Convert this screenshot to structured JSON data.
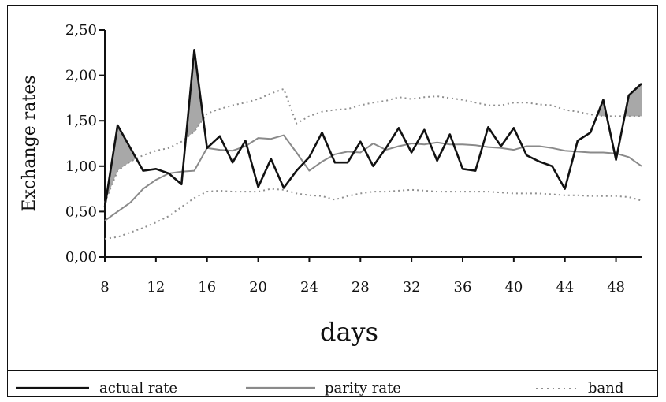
{
  "chart_data": {
    "type": "line",
    "xlabel": "days",
    "ylabel": "Exchange rates",
    "xlim": [
      8,
      50
    ],
    "ylim": [
      0,
      2.5
    ],
    "x_ticks": [
      8,
      12,
      16,
      20,
      24,
      28,
      32,
      36,
      40,
      44,
      48
    ],
    "x_tick_labels": [
      "8",
      "12",
      "16",
      "20",
      "24",
      "28",
      "32",
      "36",
      "40",
      "44",
      "48"
    ],
    "y_ticks": [
      0,
      0.5,
      1.0,
      1.5,
      2.0,
      2.5
    ],
    "y_tick_labels": [
      "0,00",
      "0,50",
      "1,00",
      "1,50",
      "2,00",
      "2,50"
    ],
    "grid": false,
    "legend_position": "bottom",
    "shading": "gray fill between actual rate and upper band where actual rate exceeds band",
    "x": [
      8,
      9,
      10,
      11,
      12,
      13,
      14,
      15,
      16,
      17,
      18,
      19,
      20,
      21,
      22,
      23,
      24,
      25,
      26,
      27,
      28,
      29,
      30,
      31,
      32,
      33,
      34,
      35,
      36,
      37,
      38,
      39,
      40,
      41,
      42,
      43,
      44,
      45,
      46,
      47,
      48,
      49,
      50
    ],
    "series": [
      {
        "name": "actual rate",
        "style": "solid-black",
        "values": [
          0.55,
          1.45,
          1.2,
          0.95,
          0.97,
          0.92,
          0.8,
          2.28,
          1.2,
          1.33,
          1.04,
          1.28,
          0.77,
          1.08,
          0.76,
          0.95,
          1.1,
          1.37,
          1.04,
          1.04,
          1.27,
          1.0,
          1.2,
          1.42,
          1.15,
          1.4,
          1.06,
          1.35,
          0.97,
          0.95,
          1.43,
          1.22,
          1.42,
          1.12,
          1.05,
          1.0,
          0.75,
          1.28,
          1.37,
          1.73,
          1.07,
          1.78,
          1.91
        ]
      },
      {
        "name": "parity rate",
        "style": "solid-gray",
        "values": [
          0.4,
          0.5,
          0.6,
          0.75,
          0.85,
          0.92,
          0.94,
          0.95,
          1.2,
          1.18,
          1.17,
          1.22,
          1.31,
          1.3,
          1.34,
          1.15,
          0.95,
          1.05,
          1.13,
          1.16,
          1.15,
          1.25,
          1.18,
          1.22,
          1.25,
          1.24,
          1.26,
          1.24,
          1.24,
          1.23,
          1.21,
          1.2,
          1.18,
          1.22,
          1.22,
          1.2,
          1.17,
          1.16,
          1.15,
          1.15,
          1.14,
          1.1,
          1.0
        ]
      },
      {
        "name": "band",
        "style": "dotted-gray",
        "values": [
          0.6,
          0.95,
          1.05,
          1.12,
          1.17,
          1.2,
          1.27,
          1.38,
          1.58,
          1.63,
          1.67,
          1.7,
          1.74,
          1.8,
          1.85,
          1.47,
          1.55,
          1.6,
          1.62,
          1.63,
          1.67,
          1.7,
          1.72,
          1.76,
          1.74,
          1.76,
          1.77,
          1.75,
          1.73,
          1.7,
          1.67,
          1.67,
          1.7,
          1.7,
          1.68,
          1.67,
          1.62,
          1.6,
          1.57,
          1.55,
          1.55,
          1.55,
          1.55
        ]
      },
      {
        "name": "band",
        "style": "dotted-gray",
        "show_in_legend": false,
        "values": [
          0.2,
          0.22,
          0.27,
          0.32,
          0.38,
          0.45,
          0.55,
          0.65,
          0.72,
          0.73,
          0.72,
          0.72,
          0.72,
          0.75,
          0.74,
          0.7,
          0.68,
          0.67,
          0.63,
          0.67,
          0.7,
          0.72,
          0.72,
          0.73,
          0.74,
          0.73,
          0.72,
          0.72,
          0.72,
          0.72,
          0.72,
          0.71,
          0.7,
          0.7,
          0.7,
          0.69,
          0.68,
          0.68,
          0.67,
          0.67,
          0.67,
          0.66,
          0.62
        ]
      }
    ]
  },
  "legend": {
    "items": [
      {
        "label": "actual rate",
        "style": "solid-black"
      },
      {
        "label": "parity rate",
        "style": "solid-gray"
      },
      {
        "label": "band",
        "style": "dotted-gray"
      }
    ]
  },
  "colors": {
    "actual": "#111111",
    "parity": "#8a8a8a",
    "band": "#8f8f8f",
    "shade": "#a8a8a8",
    "axis": "#111111"
  }
}
